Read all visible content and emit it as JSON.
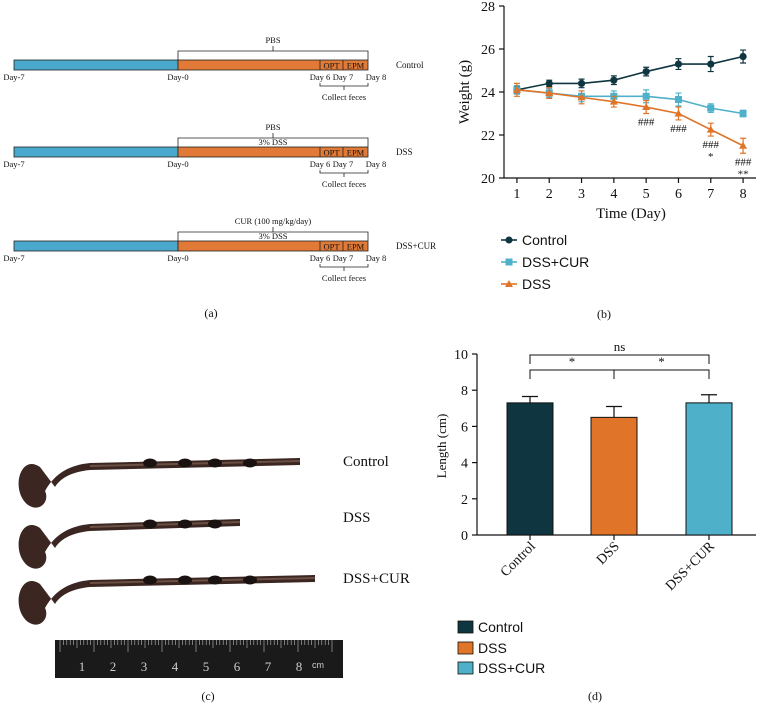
{
  "colors": {
    "baseline": "#4aa8cc",
    "treatment": "#e07a36",
    "control": "#0f3640",
    "dss": "#e07428",
    "dss_cur": "#4fb0c9"
  },
  "panel_a": {
    "caption": "(a)",
    "rows": [
      {
        "top_label": "PBS",
        "sub_label": "",
        "group": "Control",
        "day_minus7": "Day-7",
        "day0": "Day-0",
        "day6": "Day 6",
        "day7": "Day 7",
        "day8": "Day 8",
        "opt": "OPT",
        "epm": "EPM",
        "collect": "Collect feces"
      },
      {
        "top_label": "PBS",
        "sub_label": "3% DSS",
        "group": "DSS",
        "day_minus7": "Day-7",
        "day0": "Day-0",
        "day6": "Day 6",
        "day7": "Day 7",
        "day8": "Day 8",
        "opt": "OPT",
        "epm": "EPM",
        "collect": "Collect feces"
      },
      {
        "top_label": "CUR (100 mg/kg/day)",
        "sub_label": "3% DSS",
        "group": "DSS+CUR",
        "day_minus7": "Day-7",
        "day0": "Day-0",
        "day6": "Day 6",
        "day7": "Day 7",
        "day8": "Day 8",
        "opt": "OPT",
        "epm": "EPM",
        "collect": "Collect feces"
      }
    ]
  },
  "panel_c": {
    "caption": "(c)",
    "labels": [
      "Control",
      "DSS",
      "DSS+CUR"
    ],
    "ruler_numbers": [
      "1",
      "2",
      "3",
      "4",
      "5",
      "6",
      "7",
      "8"
    ],
    "ruler_unit": "cm"
  },
  "chart_data": [
    {
      "type": "line",
      "caption": "(b)",
      "xlabel": "Time (Day)",
      "ylabel": "Weight (g)",
      "x": [
        1,
        2,
        3,
        4,
        5,
        6,
        7,
        8
      ],
      "xlim": [
        0.6,
        8.4
      ],
      "ylim": [
        20,
        28
      ],
      "yticks": [
        20,
        22,
        24,
        26,
        28
      ],
      "series": [
        {
          "name": "Control",
          "values": [
            24.1,
            24.4,
            24.4,
            24.55,
            24.95,
            25.3,
            25.3,
            25.65
          ],
          "errors": [
            0.15,
            0.15,
            0.2,
            0.2,
            0.2,
            0.25,
            0.35,
            0.3
          ],
          "marker": "circle"
        },
        {
          "name": "DSS+CUR",
          "values": [
            24.1,
            23.95,
            23.8,
            23.8,
            23.8,
            23.65,
            23.25,
            23.0
          ],
          "errors": [
            0.2,
            0.2,
            0.25,
            0.25,
            0.3,
            0.3,
            0.2,
            0.15
          ],
          "marker": "square"
        },
        {
          "name": "DSS",
          "values": [
            24.1,
            23.95,
            23.75,
            23.55,
            23.3,
            23.0,
            22.25,
            21.5
          ],
          "errors": [
            0.3,
            0.25,
            0.3,
            0.25,
            0.3,
            0.3,
            0.3,
            0.35
          ],
          "marker": "triangle"
        }
      ],
      "annotations": [
        {
          "x": 5,
          "lines": [
            "###"
          ]
        },
        {
          "x": 6,
          "lines": [
            "###"
          ]
        },
        {
          "x": 7,
          "lines": [
            "###",
            "*"
          ]
        },
        {
          "x": 8,
          "lines": [
            "###",
            "**"
          ]
        }
      ]
    },
    {
      "type": "bar",
      "caption": "(d)",
      "categories": [
        "Control",
        "DSS",
        "DSS+CUR"
      ],
      "values": [
        7.3,
        6.5,
        7.3
      ],
      "errors": [
        0.35,
        0.6,
        0.45
      ],
      "ylabel": "Length (cm)",
      "ylim": [
        0,
        10
      ],
      "yticks": [
        0,
        2,
        4,
        6,
        8,
        10
      ],
      "significance": [
        {
          "from": 0,
          "to": 1,
          "label": "*"
        },
        {
          "from": 1,
          "to": 2,
          "label": "*"
        },
        {
          "from": 0,
          "to": 2,
          "label": "ns"
        }
      ]
    }
  ]
}
